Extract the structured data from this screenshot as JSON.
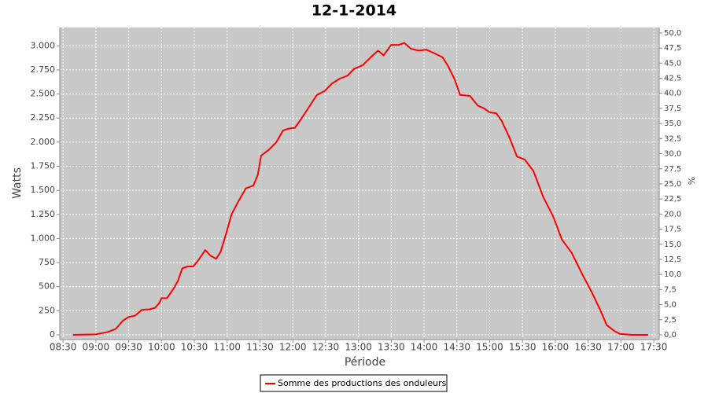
{
  "chart_data": {
    "type": "line",
    "title": "12-1-2014",
    "x_label": "Période",
    "y_label": "Watts",
    "y2_label": "%",
    "xlim": [
      "08:27",
      "17:35"
    ],
    "xticks": [
      "08:30",
      "09:00",
      "09:30",
      "10:00",
      "10:30",
      "11:00",
      "11:30",
      "12:00",
      "12:30",
      "13:00",
      "13:30",
      "14:00",
      "14:30",
      "15:00",
      "15:30",
      "16:00",
      "16:30",
      "17:00",
      "17:30"
    ],
    "ylim": [
      -49,
      3190
    ],
    "yticks": [
      0,
      250,
      500,
      750,
      {
        "value": 1000,
        "label": "1.000"
      },
      {
        "value": 1250,
        "label": "1.250"
      },
      {
        "value": 1500,
        "label": "1.500"
      },
      {
        "value": 1750,
        "label": "1.750"
      },
      {
        "value": 2000,
        "label": "2.000"
      },
      {
        "value": 2250,
        "label": "2.250"
      },
      {
        "value": 2500,
        "label": "2.500"
      },
      {
        "value": 2750,
        "label": "2.750"
      },
      {
        "value": 3000,
        "label": "3.000"
      }
    ],
    "y2lim": [
      -0.78,
      50.9
    ],
    "y2ticks": [
      {
        "value": 0,
        "label": "0,0"
      },
      {
        "value": 2.5,
        "label": "2,5"
      },
      {
        "value": 5,
        "label": "5,0"
      },
      {
        "value": 7.5,
        "label": "7,5"
      },
      {
        "value": 10,
        "label": "10,0"
      },
      {
        "value": 12.5,
        "label": "12,5"
      },
      {
        "value": 15,
        "label": "15,0"
      },
      {
        "value": 17.5,
        "label": "17,5"
      },
      {
        "value": 20,
        "label": "20,0"
      },
      {
        "value": 22.5,
        "label": "22,5"
      },
      {
        "value": 25,
        "label": "25,0"
      },
      {
        "value": 27.5,
        "label": "27,5"
      },
      {
        "value": 30,
        "label": "30,0"
      },
      {
        "value": 32.5,
        "label": "32,5"
      },
      {
        "value": 35,
        "label": "35,0"
      },
      {
        "value": 37.5,
        "label": "37,5"
      },
      {
        "value": 40,
        "label": "40,0"
      },
      {
        "value": 42.5,
        "label": "42,5"
      },
      {
        "value": 45,
        "label": "45,0"
      },
      {
        "value": 47.5,
        "label": "47,5"
      },
      {
        "value": 50,
        "label": "50,0"
      }
    ],
    "grid": true,
    "legend": "bottom",
    "x": [
      "08:39",
      "09:00",
      "09:11",
      "09:18",
      "09:25",
      "09:30",
      "09:36",
      "09:42",
      "09:49",
      "09:54",
      "09:58",
      "10:00",
      "10:05",
      "10:11",
      "10:15",
      "10:19",
      "10:24",
      "10:29",
      "10:34",
      "10:40",
      "10:45",
      "10:50",
      "10:54",
      "10:59",
      "11:04",
      "11:10",
      "11:17",
      "11:24",
      "11:28",
      "11:31",
      "11:38",
      "11:45",
      "11:51",
      "11:56",
      "12:02",
      "12:07",
      "12:14",
      "12:22",
      "12:29",
      "12:36",
      "12:43",
      "12:50",
      "12:56",
      "13:04",
      "13:12",
      "13:18",
      "13:23",
      "13:30",
      "13:37",
      "13:42",
      "13:48",
      "13:55",
      "14:02",
      "14:10",
      "14:17",
      "14:22",
      "14:28",
      "14:33",
      "14:42",
      "14:49",
      "14:55",
      "15:00",
      "15:06",
      "15:11",
      "15:18",
      "15:25",
      "15:32",
      "15:40",
      "15:49",
      "15:58",
      "16:06",
      "16:15",
      "16:25",
      "16:33",
      "16:41",
      "16:47",
      "16:54",
      "16:59",
      "17:10",
      "17:25"
    ],
    "series": [
      {
        "name": "Somme des productions des onduleurs",
        "color": "#ff0000",
        "values": [
          0,
          5,
          30,
          60,
          150,
          185,
          200,
          260,
          265,
          280,
          330,
          380,
          380,
          480,
          560,
          690,
          710,
          710,
          780,
          880,
          820,
          790,
          860,
          1050,
          1250,
          1380,
          1520,
          1550,
          1660,
          1860,
          1920,
          2000,
          2120,
          2140,
          2150,
          2230,
          2350,
          2490,
          2530,
          2610,
          2660,
          2690,
          2760,
          2800,
          2890,
          2950,
          2900,
          3010,
          3010,
          3030,
          2970,
          2950,
          2960,
          2920,
          2880,
          2790,
          2650,
          2490,
          2480,
          2380,
          2350,
          2310,
          2300,
          2220,
          2050,
          1850,
          1820,
          1700,
          1430,
          1230,
          990,
          850,
          620,
          450,
          260,
          100,
          40,
          10,
          0,
          0
        ]
      }
    ]
  }
}
